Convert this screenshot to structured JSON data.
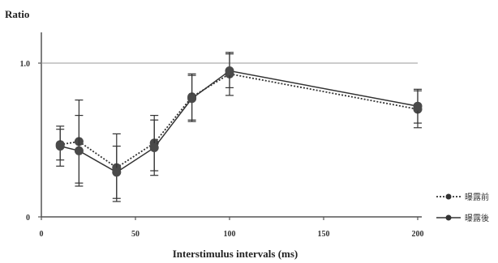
{
  "chart_data": {
    "type": "line",
    "ylabel": "Ratio",
    "xlabel": "Interstimulus intervals (ms)",
    "xlim": [
      0,
      200
    ],
    "ylim": [
      0,
      1.0
    ],
    "x_ticks": [
      "0",
      "50",
      "100",
      "150",
      "200"
    ],
    "y_ticks": [
      "0",
      "1.0"
    ],
    "reference_line": 1.0,
    "x": [
      10,
      20,
      40,
      60,
      80,
      100,
      200
    ],
    "series": [
      {
        "name": "曝露前",
        "style": "dotted",
        "color": "#333333",
        "values": [
          0.47,
          0.49,
          0.32,
          0.48,
          0.78,
          0.93,
          0.7
        ],
        "error": [
          0.1,
          0.27,
          0.22,
          0.18,
          0.15,
          0.14,
          0.12
        ]
      },
      {
        "name": "曝露後",
        "style": "solid",
        "color": "#333333",
        "values": [
          0.46,
          0.43,
          0.29,
          0.45,
          0.77,
          0.95,
          0.72
        ],
        "error": [
          0.13,
          0.23,
          0.17,
          0.18,
          0.15,
          0.11,
          0.11
        ]
      }
    ],
    "legend_position": "bottom-right"
  }
}
